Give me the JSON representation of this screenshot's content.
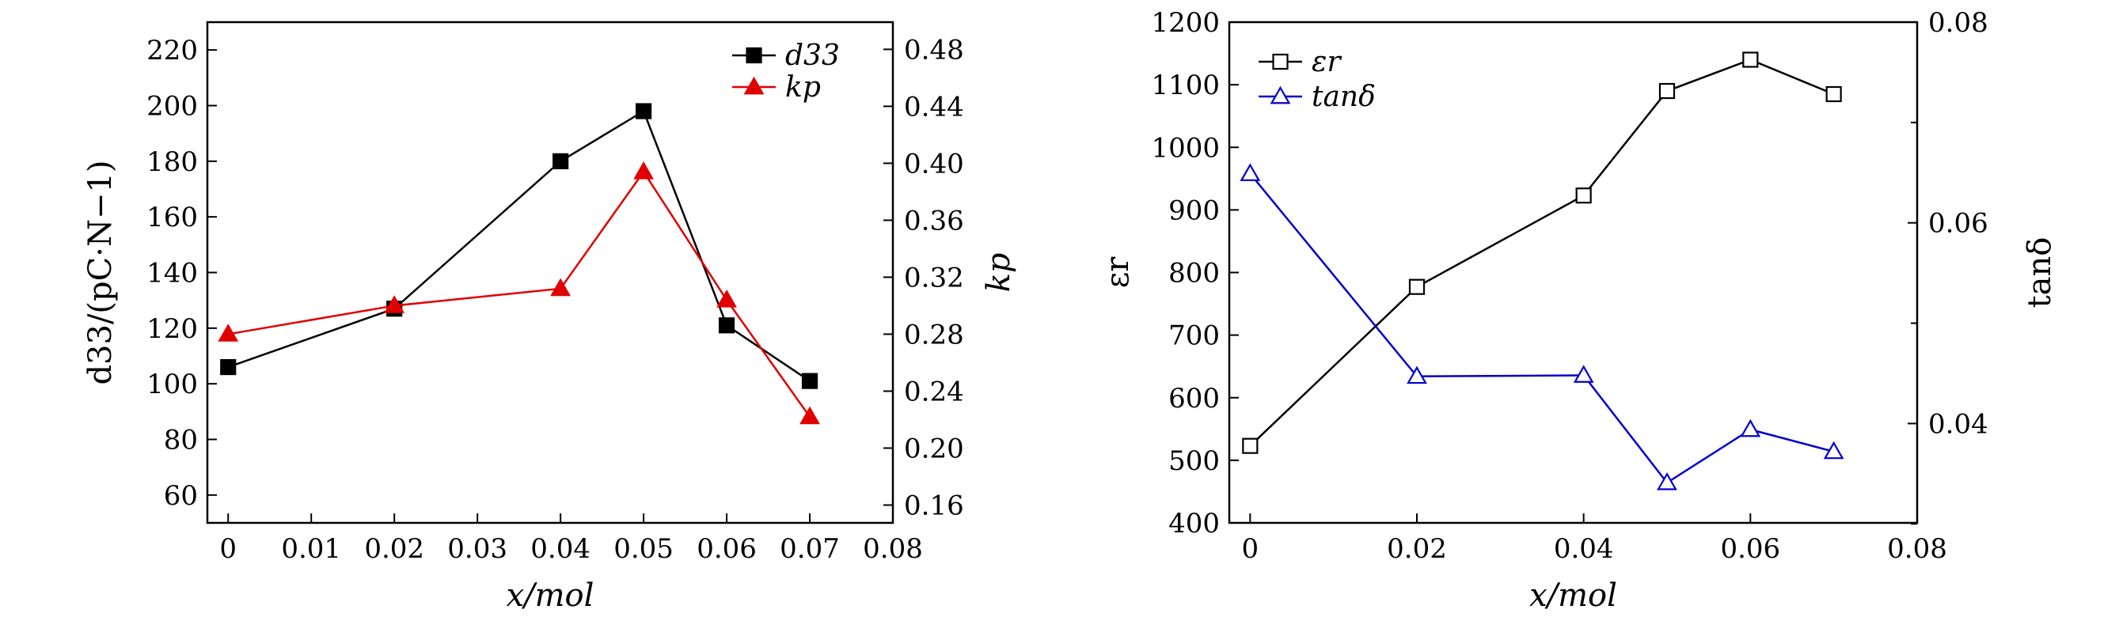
{
  "chart_data": [
    {
      "type": "line",
      "xlabel": "x/mol",
      "ylabel": "d33/(pC·N−1)",
      "ylabel_right": "kp",
      "x_ticks": [
        "0",
        "0.01",
        "0.02",
        "0.03",
        "0.04",
        "0.05",
        "0.06",
        "0.07",
        "0.08"
      ],
      "y_ticks": [
        "60",
        "80",
        "100",
        "120",
        "140",
        "160",
        "180",
        "200",
        "220"
      ],
      "y_right_ticks": [
        "0.16",
        "0.20",
        "0.24",
        "0.28",
        "0.32",
        "0.36",
        "0.40",
        "0.44",
        "0.48"
      ],
      "xlim": [
        -0.0025,
        0.08
      ],
      "ylim": [
        50,
        230
      ],
      "ylim_right": [
        0.1475,
        0.4991
      ],
      "legend_position": "top-right",
      "series": [
        {
          "name": "d33",
          "axis": "left",
          "color": "#000000",
          "marker": "square-filled",
          "x": [
            0,
            0.02,
            0.04,
            0.05,
            0.06,
            0.07
          ],
          "y": [
            106,
            127,
            180,
            198,
            121,
            101
          ]
        },
        {
          "name": "kp",
          "axis": "right",
          "color": "#e00000",
          "marker": "triangle-filled",
          "x": [
            0,
            0.02,
            0.04,
            0.05,
            0.06,
            0.07
          ],
          "y": [
            0.28,
            0.3,
            0.312,
            0.394,
            0.304,
            0.222
          ]
        }
      ]
    },
    {
      "type": "line",
      "xlabel": "x/mol",
      "ylabel": "εr",
      "ylabel_right": "tanδ",
      "x_ticks": [
        "0",
        "0.02",
        "0.04",
        "0.06",
        "0.08"
      ],
      "y_ticks": [
        "400",
        "500",
        "600",
        "700",
        "800",
        "900",
        "1000",
        "1100",
        "1200"
      ],
      "y_right_ticks": [
        "0.04",
        "0.06",
        "0.08"
      ],
      "xlim": [
        -0.0025,
        0.08
      ],
      "ylim": [
        400,
        1200
      ],
      "ylim_right": [
        0.0301,
        0.08
      ],
      "legend_position": "top-left",
      "series": [
        {
          "name": "εr",
          "axis": "left",
          "color": "#000000",
          "marker": "square-open",
          "x": [
            0,
            0.02,
            0.04,
            0.05,
            0.06,
            0.07
          ],
          "y": [
            523,
            777,
            923,
            1090,
            1140,
            1085
          ]
        },
        {
          "name": "tanδ",
          "axis": "right",
          "color": "#0000cc",
          "marker": "triangle-open",
          "x": [
            0,
            0.02,
            0.04,
            0.05,
            0.06,
            0.07
          ],
          "y": [
            0.0649,
            0.0447,
            0.0448,
            0.0341,
            0.0394,
            0.0372
          ]
        }
      ]
    }
  ]
}
